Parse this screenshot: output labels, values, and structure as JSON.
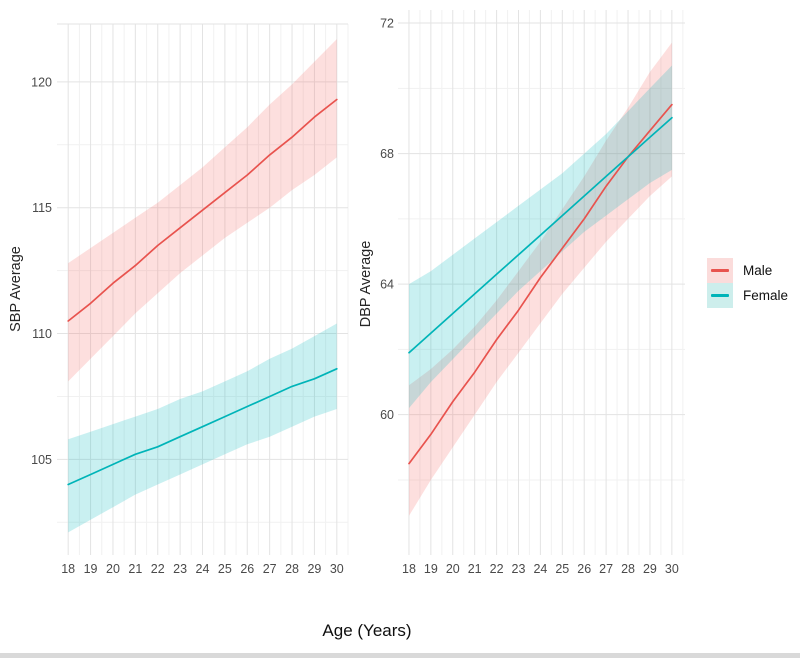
{
  "figure": {
    "x_axis_title": "Age (Years)"
  },
  "colors": {
    "male": "#e8534e",
    "female": "#00b4b8",
    "male_fill": "#f46a62",
    "female_fill": "#00b9be",
    "fill_opacity": 0.21,
    "grid_major": "#e3e3e3",
    "grid_minor": "#f1f1f1"
  },
  "legend": {
    "items": [
      {
        "label": "Male",
        "line": "#e8534e",
        "fill": "#fbdcdb"
      },
      {
        "label": "Female",
        "line": "#00b4b8",
        "fill": "#cdeeec"
      }
    ]
  },
  "chart_data": [
    {
      "type": "line",
      "ylabel": "SBP Average",
      "xlabel": "Age (Years)",
      "x": [
        18,
        19,
        20,
        21,
        22,
        23,
        24,
        25,
        26,
        27,
        28,
        29,
        30
      ],
      "x_ticks": [
        18,
        19,
        20,
        21,
        22,
        23,
        24,
        25,
        26,
        27,
        28,
        29,
        30
      ],
      "x_minor": [
        18.5,
        19.5,
        20.5,
        21.5,
        22.5,
        23.5,
        24.5,
        25.5,
        26.5,
        27.5,
        28.5,
        29.5,
        30.5
      ],
      "y_ticks": [
        105,
        110,
        115,
        120
      ],
      "y_minor": [
        102.5,
        107.5,
        112.5,
        117.5
      ],
      "xlim": [
        17.5,
        30.5
      ],
      "ylim": [
        101.2,
        122.3
      ],
      "grid": true,
      "series": [
        {
          "name": "Male",
          "key": "male",
          "values": [
            110.5,
            111.2,
            112.0,
            112.7,
            113.5,
            114.2,
            114.9,
            115.6,
            116.3,
            117.1,
            117.8,
            118.6,
            119.3
          ],
          "ci_lower": [
            108.1,
            109.0,
            109.9,
            110.8,
            111.6,
            112.4,
            113.1,
            113.8,
            114.4,
            115.0,
            115.7,
            116.3,
            117.0
          ],
          "ci_upper": [
            112.8,
            113.4,
            114.0,
            114.6,
            115.2,
            115.9,
            116.6,
            117.4,
            118.2,
            119.1,
            119.9,
            120.8,
            121.7
          ]
        },
        {
          "name": "Female",
          "key": "female",
          "values": [
            104.0,
            104.4,
            104.8,
            105.2,
            105.5,
            105.9,
            106.3,
            106.7,
            107.1,
            107.5,
            107.9,
            108.2,
            108.6
          ],
          "ci_lower": [
            102.1,
            102.6,
            103.1,
            103.6,
            104.0,
            104.4,
            104.8,
            105.2,
            105.6,
            105.9,
            106.3,
            106.7,
            107.0
          ],
          "ci_upper": [
            105.8,
            106.1,
            106.4,
            106.7,
            107.0,
            107.4,
            107.7,
            108.1,
            108.5,
            109.0,
            109.4,
            109.9,
            110.4
          ]
        }
      ]
    },
    {
      "type": "line",
      "ylabel": "DBP Average",
      "xlabel": "Age (Years)",
      "x": [
        18,
        19,
        20,
        21,
        22,
        23,
        24,
        25,
        26,
        27,
        28,
        29,
        30
      ],
      "x_ticks": [
        18,
        19,
        20,
        21,
        22,
        23,
        24,
        25,
        26,
        27,
        28,
        29,
        30
      ],
      "x_minor": [
        18.5,
        19.5,
        20.5,
        21.5,
        22.5,
        23.5,
        24.5,
        25.5,
        26.5,
        27.5,
        28.5,
        29.5,
        30.5
      ],
      "y_ticks": [
        60,
        64,
        68,
        72
      ],
      "y_minor": [
        58,
        62,
        66,
        70
      ],
      "xlim": [
        17.5,
        30.6
      ],
      "ylim": [
        55.7,
        72.4
      ],
      "grid": true,
      "series": [
        {
          "name": "Male",
          "key": "male",
          "values": [
            58.5,
            59.4,
            60.4,
            61.3,
            62.3,
            63.2,
            64.2,
            65.1,
            66.0,
            67.0,
            67.9,
            68.7,
            69.5
          ],
          "ci_lower": [
            56.9,
            58.0,
            59.0,
            60.0,
            61.0,
            61.9,
            62.8,
            63.7,
            64.5,
            65.3,
            66.0,
            66.7,
            67.3
          ],
          "ci_upper": [
            60.9,
            61.4,
            62.0,
            62.7,
            63.5,
            64.4,
            65.3,
            66.3,
            67.3,
            68.4,
            69.4,
            70.5,
            71.4
          ]
        },
        {
          "name": "Female",
          "key": "female",
          "values": [
            61.9,
            62.5,
            63.1,
            63.7,
            64.3,
            64.9,
            65.5,
            66.1,
            66.7,
            67.3,
            67.9,
            68.5,
            69.1
          ],
          "ci_lower": [
            60.2,
            61.0,
            61.7,
            62.4,
            63.1,
            63.8,
            64.4,
            65.0,
            65.6,
            66.1,
            66.6,
            67.1,
            67.5
          ],
          "ci_upper": [
            64.0,
            64.4,
            64.9,
            65.4,
            65.9,
            66.4,
            66.9,
            67.4,
            68.0,
            68.6,
            69.3,
            70.0,
            70.7
          ]
        }
      ]
    }
  ]
}
